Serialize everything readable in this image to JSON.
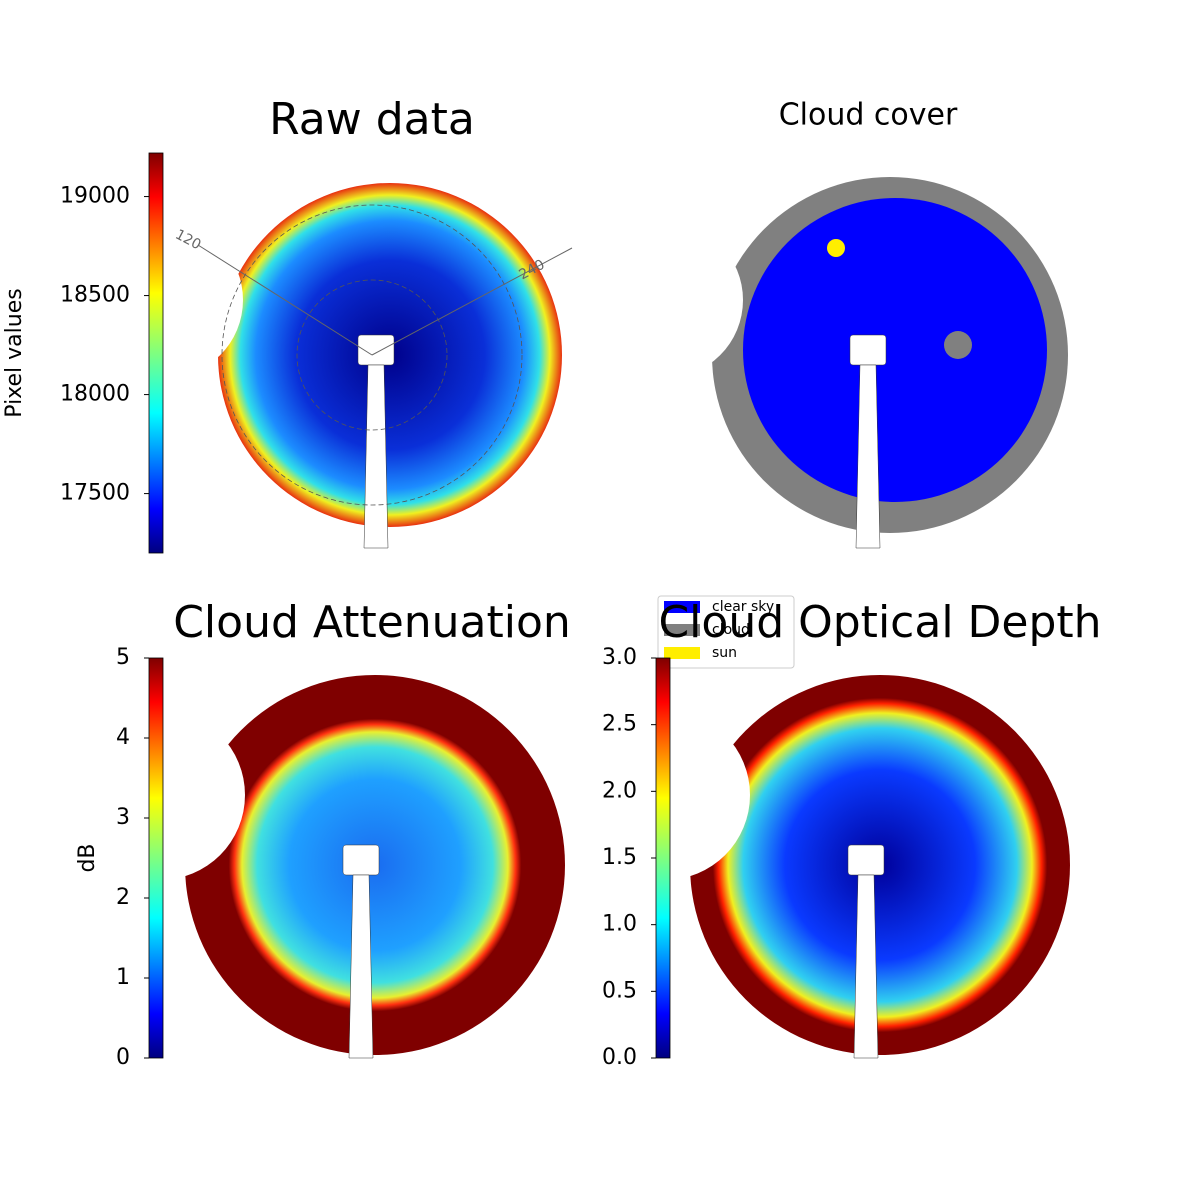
{
  "chart_data": [
    {
      "type": "heatmap",
      "title": "Raw data",
      "colorbar_label": "Pixel values",
      "colormap": "jet",
      "ylim": [
        17200,
        19220
      ],
      "yticks": [
        17500,
        18000,
        18500,
        19000
      ],
      "annotations": [
        "120",
        "240"
      ]
    },
    {
      "type": "categorical",
      "title": "Cloud cover",
      "categories": [
        "clear sky",
        "cloud",
        "sun"
      ],
      "colors": [
        "#0000ff",
        "#808080",
        "#ffee00"
      ]
    },
    {
      "type": "heatmap",
      "title": "Cloud Attenuation",
      "colorbar_label": "dB",
      "colormap": "jet",
      "ylim": [
        0,
        5
      ],
      "yticks": [
        0,
        1,
        2,
        3,
        4,
        5
      ]
    },
    {
      "type": "heatmap",
      "title": "Cloud Optical Depth",
      "colormap": "jet",
      "ylim": [
        0,
        3
      ],
      "yticks": [
        {
          "value": 0,
          "label": "0.0"
        },
        0.5,
        {
          "value": 1,
          "label": "1.0"
        },
        1.5,
        {
          "value": 2,
          "label": "2.0"
        },
        2.5,
        {
          "value": 3,
          "label": "3.0"
        }
      ]
    }
  ]
}
